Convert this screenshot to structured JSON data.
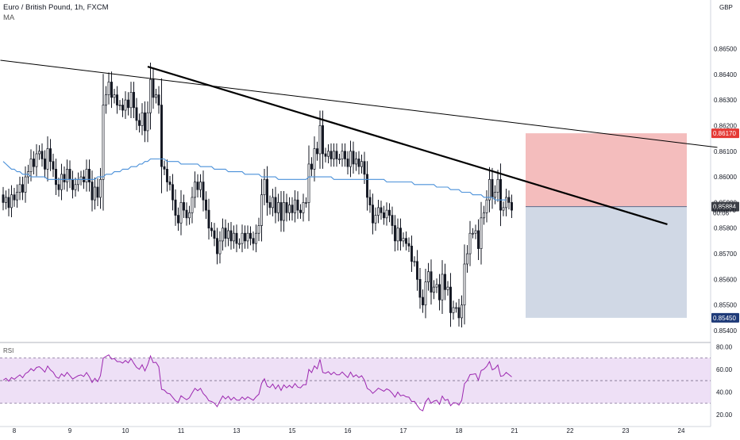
{
  "header": {
    "symbol_line": "Euro / British Pound, 1h, FXCM",
    "indicator_label": "MA"
  },
  "colors": {
    "candle": "#131722",
    "ma_line": "#4a90d9",
    "stop_zone": "#f3b6b6",
    "target_zone": "#ced6e4",
    "trendline": "#000000",
    "rsi_band": "#e8d6f3",
    "rsi_line": "#9c27b0",
    "badge_red": "#e53935",
    "badge_blue": "#1e3a78",
    "badge_dark": "#3c3f46"
  },
  "chart_data": [
    {
      "type": "candlestick",
      "currency": "GBP",
      "ylim": [
        0.8536,
        0.8669
      ],
      "y_ticks": [
        "0.86500",
        "0.86400",
        "0.86300",
        "0.86200",
        "0.86100",
        "0.86000",
        "0.85900",
        "0.85800",
        "0.85700",
        "0.85600",
        "0.85500",
        "0.85400"
      ],
      "x_ticks": [
        "8",
        "9",
        "10",
        "11",
        "13",
        "15",
        "16",
        "17",
        "18",
        "21",
        "22",
        "23",
        "24"
      ],
      "x_tick_index": [
        4,
        24,
        44,
        64,
        84,
        104,
        124,
        144,
        164,
        184,
        204,
        224,
        244
      ],
      "close": [
        0.859,
        0.8592,
        0.8588,
        0.8593,
        0.8591,
        0.8594,
        0.8597,
        0.8594,
        0.86,
        0.8602,
        0.8607,
        0.8604,
        0.8609,
        0.861,
        0.8607,
        0.8603,
        0.8611,
        0.8606,
        0.8603,
        0.8597,
        0.8595,
        0.8601,
        0.8598,
        0.8603,
        0.8599,
        0.8595,
        0.8597,
        0.8599,
        0.86,
        0.8598,
        0.8603,
        0.8598,
        0.8591,
        0.8596,
        0.8592,
        0.8599,
        0.8628,
        0.8632,
        0.8637,
        0.8631,
        0.8632,
        0.8628,
        0.8628,
        0.8626,
        0.863,
        0.8627,
        0.8633,
        0.8627,
        0.8622,
        0.862,
        0.8625,
        0.8618,
        0.8625,
        0.8638,
        0.8631,
        0.8632,
        0.8628,
        0.8604,
        0.8603,
        0.8598,
        0.8597,
        0.8591,
        0.8585,
        0.8582,
        0.859,
        0.8587,
        0.8584,
        0.8586,
        0.8592,
        0.8598,
        0.8595,
        0.8598,
        0.8591,
        0.8587,
        0.858,
        0.8579,
        0.8576,
        0.857,
        0.8575,
        0.858,
        0.8576,
        0.8579,
        0.8575,
        0.8578,
        0.8574,
        0.8574,
        0.8578,
        0.8575,
        0.8578,
        0.8576,
        0.8574,
        0.8578,
        0.8581,
        0.8593,
        0.8599,
        0.859,
        0.8588,
        0.8592,
        0.8586,
        0.859,
        0.8583,
        0.859,
        0.8586,
        0.8589,
        0.8586,
        0.8591,
        0.8587,
        0.8586,
        0.859,
        0.859,
        0.8605,
        0.8603,
        0.8611,
        0.8609,
        0.862,
        0.8609,
        0.8608,
        0.861,
        0.8607,
        0.861,
        0.8607,
        0.8607,
        0.861,
        0.8607,
        0.8604,
        0.861,
        0.8605,
        0.8607,
        0.8604,
        0.8606,
        0.8601,
        0.8592,
        0.8589,
        0.8582,
        0.8585,
        0.8588,
        0.8586,
        0.8584,
        0.8587,
        0.8585,
        0.8581,
        0.8575,
        0.858,
        0.8575,
        0.8576,
        0.8574,
        0.8573,
        0.8567,
        0.8567,
        0.856,
        0.8553,
        0.855,
        0.8559,
        0.8563,
        0.8555,
        0.8557,
        0.8558,
        0.8552,
        0.8562,
        0.8556,
        0.8557,
        0.8547,
        0.8549,
        0.8549,
        0.8545,
        0.855,
        0.8566,
        0.857,
        0.8578,
        0.8578,
        0.8579,
        0.8572,
        0.8584,
        0.8586,
        0.8591,
        0.8599,
        0.8592,
        0.8594,
        0.8599,
        0.8587,
        0.8588,
        0.8592,
        0.859,
        0.8587
      ],
      "ma": [
        0.8606,
        0.8605,
        0.8604,
        0.8603,
        0.8603,
        0.8602,
        0.8602,
        0.8601,
        0.8601,
        0.8601,
        0.86,
        0.86,
        0.86,
        0.86,
        0.86,
        0.86,
        0.8599,
        0.8599,
        0.8599,
        0.8599,
        0.8599,
        0.8599,
        0.8599,
        0.8599,
        0.8599,
        0.8599,
        0.8599,
        0.8599,
        0.8599,
        0.8599,
        0.8599,
        0.8599,
        0.8599,
        0.8599,
        0.86,
        0.86,
        0.86,
        0.8601,
        0.8601,
        0.8601,
        0.8602,
        0.8602,
        0.8602,
        0.8603,
        0.8603,
        0.8603,
        0.8604,
        0.8604,
        0.8604,
        0.8605,
        0.8605,
        0.8606,
        0.8606,
        0.8607,
        0.8607,
        0.8607,
        0.8607,
        0.8607,
        0.8607,
        0.8606,
        0.8606,
        0.8606,
        0.8606,
        0.8606,
        0.8605,
        0.8605,
        0.8605,
        0.8605,
        0.8605,
        0.8605,
        0.8605,
        0.8604,
        0.8604,
        0.8604,
        0.8604,
        0.8604,
        0.8603,
        0.8603,
        0.8603,
        0.8603,
        0.8603,
        0.8602,
        0.8602,
        0.8602,
        0.8602,
        0.8602,
        0.8602,
        0.8601,
        0.8601,
        0.8601,
        0.8601,
        0.8601,
        0.8601,
        0.86,
        0.86,
        0.86,
        0.86,
        0.86,
        0.86,
        0.8599,
        0.8599,
        0.8599,
        0.8599,
        0.8599,
        0.8599,
        0.8599,
        0.8599,
        0.8599,
        0.8599,
        0.8599,
        0.86,
        0.86,
        0.86,
        0.86,
        0.86,
        0.86,
        0.86,
        0.86,
        0.86,
        0.8599,
        0.8599,
        0.8599,
        0.8599,
        0.8599,
        0.8599,
        0.8599,
        0.8599,
        0.8599,
        0.8599,
        0.8599,
        0.8599,
        0.8599,
        0.8599,
        0.8599,
        0.8599,
        0.8599,
        0.8599,
        0.8599,
        0.8598,
        0.8598,
        0.8598,
        0.8598,
        0.8598,
        0.8598,
        0.8598,
        0.8598,
        0.8598,
        0.8598,
        0.8597,
        0.8597,
        0.8597,
        0.8597,
        0.8597,
        0.8597,
        0.8597,
        0.8597,
        0.8596,
        0.8596,
        0.8596,
        0.8596,
        0.8596,
        0.8595,
        0.8595,
        0.8595,
        0.8595,
        0.8594,
        0.8594,
        0.8594,
        0.8594,
        0.8593,
        0.8593,
        0.8593,
        0.8593,
        0.8592,
        0.8592,
        0.8592,
        0.8592,
        0.8591,
        0.8591,
        0.8591,
        0.8591,
        0.8591
      ],
      "badges": [
        {
          "label": "0.86170",
          "price": 0.8617,
          "style": "badge_red"
        },
        {
          "label": "0.85884",
          "price": 0.85884,
          "style": "badge_dark"
        },
        {
          "label": "0.85870",
          "price": 0.8587,
          "style": "plain"
        },
        {
          "label": "00:06",
          "price": 0.8586,
          "style": "plain"
        },
        {
          "label": "0.85450",
          "price": 0.8545,
          "style": "badge_blue"
        }
      ],
      "trendlines": [
        {
          "name": "long-resistance",
          "x": [
            -1,
            257
          ],
          "y": [
            0.86455,
            0.86115
          ],
          "width": 1
        },
        {
          "name": "short-resistance",
          "x": [
            52,
            239
          ],
          "y": [
            0.8643,
            0.85815
          ],
          "width": 2.2
        }
      ],
      "position": {
        "x": [
          188,
          246
        ],
        "stop": 0.8617,
        "entry": 0.85884,
        "target": 0.8545
      }
    },
    {
      "type": "line",
      "title": "RSI",
      "ylim": [
        15,
        83
      ],
      "y_ticks": [
        80.0,
        60.0,
        40.0,
        20.0
      ],
      "band": [
        30,
        70
      ],
      "midline": 50,
      "values": [
        50.4,
        52.1,
        49.5,
        52.7,
        51.2,
        53.2,
        55.0,
        52.5,
        56.2,
        57.6,
        60.6,
        58.6,
        61.6,
        62.3,
        60.2,
        57.5,
        62.9,
        59.4,
        57.4,
        53.3,
        52.0,
        56.0,
        53.8,
        57.3,
        54.4,
        51.4,
        52.9,
        54.3,
        55.0,
        53.6,
        57.1,
        53.4,
        48.3,
        52.0,
        49.1,
        54.4,
        69.9,
        71.4,
        72.7,
        69.0,
        69.5,
        66.8,
        66.8,
        65.5,
        67.8,
        65.7,
        69.5,
        65.3,
        61.7,
        60.0,
        64.0,
        58.5,
        64.1,
        71.8,
        65.8,
        66.2,
        62.2,
        42.3,
        41.6,
        38.9,
        38.3,
        35.2,
        32.2,
        30.8,
        36.6,
        34.7,
        33.1,
        34.8,
        39.1,
        43.1,
        41.1,
        43.1,
        38.5,
        36.0,
        32.2,
        31.5,
        30.0,
        27.0,
        31.9,
        36.4,
        33.8,
        36.1,
        32.8,
        35.2,
        32.8,
        32.7,
        35.5,
        33.3,
        35.6,
        34.1,
        32.7,
        35.7,
        37.9,
        47.6,
        51.6,
        45.1,
        43.9,
        47.0,
        42.6,
        46.1,
        41.3,
        46.2,
        43.6,
        45.8,
        43.6,
        47.4,
        44.2,
        43.6,
        46.4,
        46.4,
        59.9,
        57.1,
        63.0,
        60.4,
        68.8,
        57.3,
        56.5,
        57.9,
        55.3,
        57.5,
        55.1,
        55.2,
        57.6,
        55.0,
        52.7,
        57.5,
        53.3,
        55.1,
        52.7,
        54.3,
        50.3,
        43.1,
        41.6,
        38.7,
        40.9,
        43.3,
        41.9,
        40.6,
        42.7,
        41.4,
        38.8,
        35.4,
        39.8,
        36.5,
        37.2,
        35.7,
        35.3,
        31.5,
        31.6,
        27.9,
        24.5,
        23.3,
        31.2,
        34.5,
        29.9,
        31.8,
        32.6,
        29.0,
        36.3,
        32.5,
        33.4,
        27.8,
        30.4,
        30.3,
        28.3,
        32.6,
        47.2,
        50.1,
        55.3,
        55.6,
        56.1,
        50.3,
        58.9,
        60.1,
        62.6,
        66.8,
        59.5,
        60.8,
        63.8,
        53.8,
        54.4,
        57.2,
        55.3,
        53.3
      ]
    }
  ]
}
